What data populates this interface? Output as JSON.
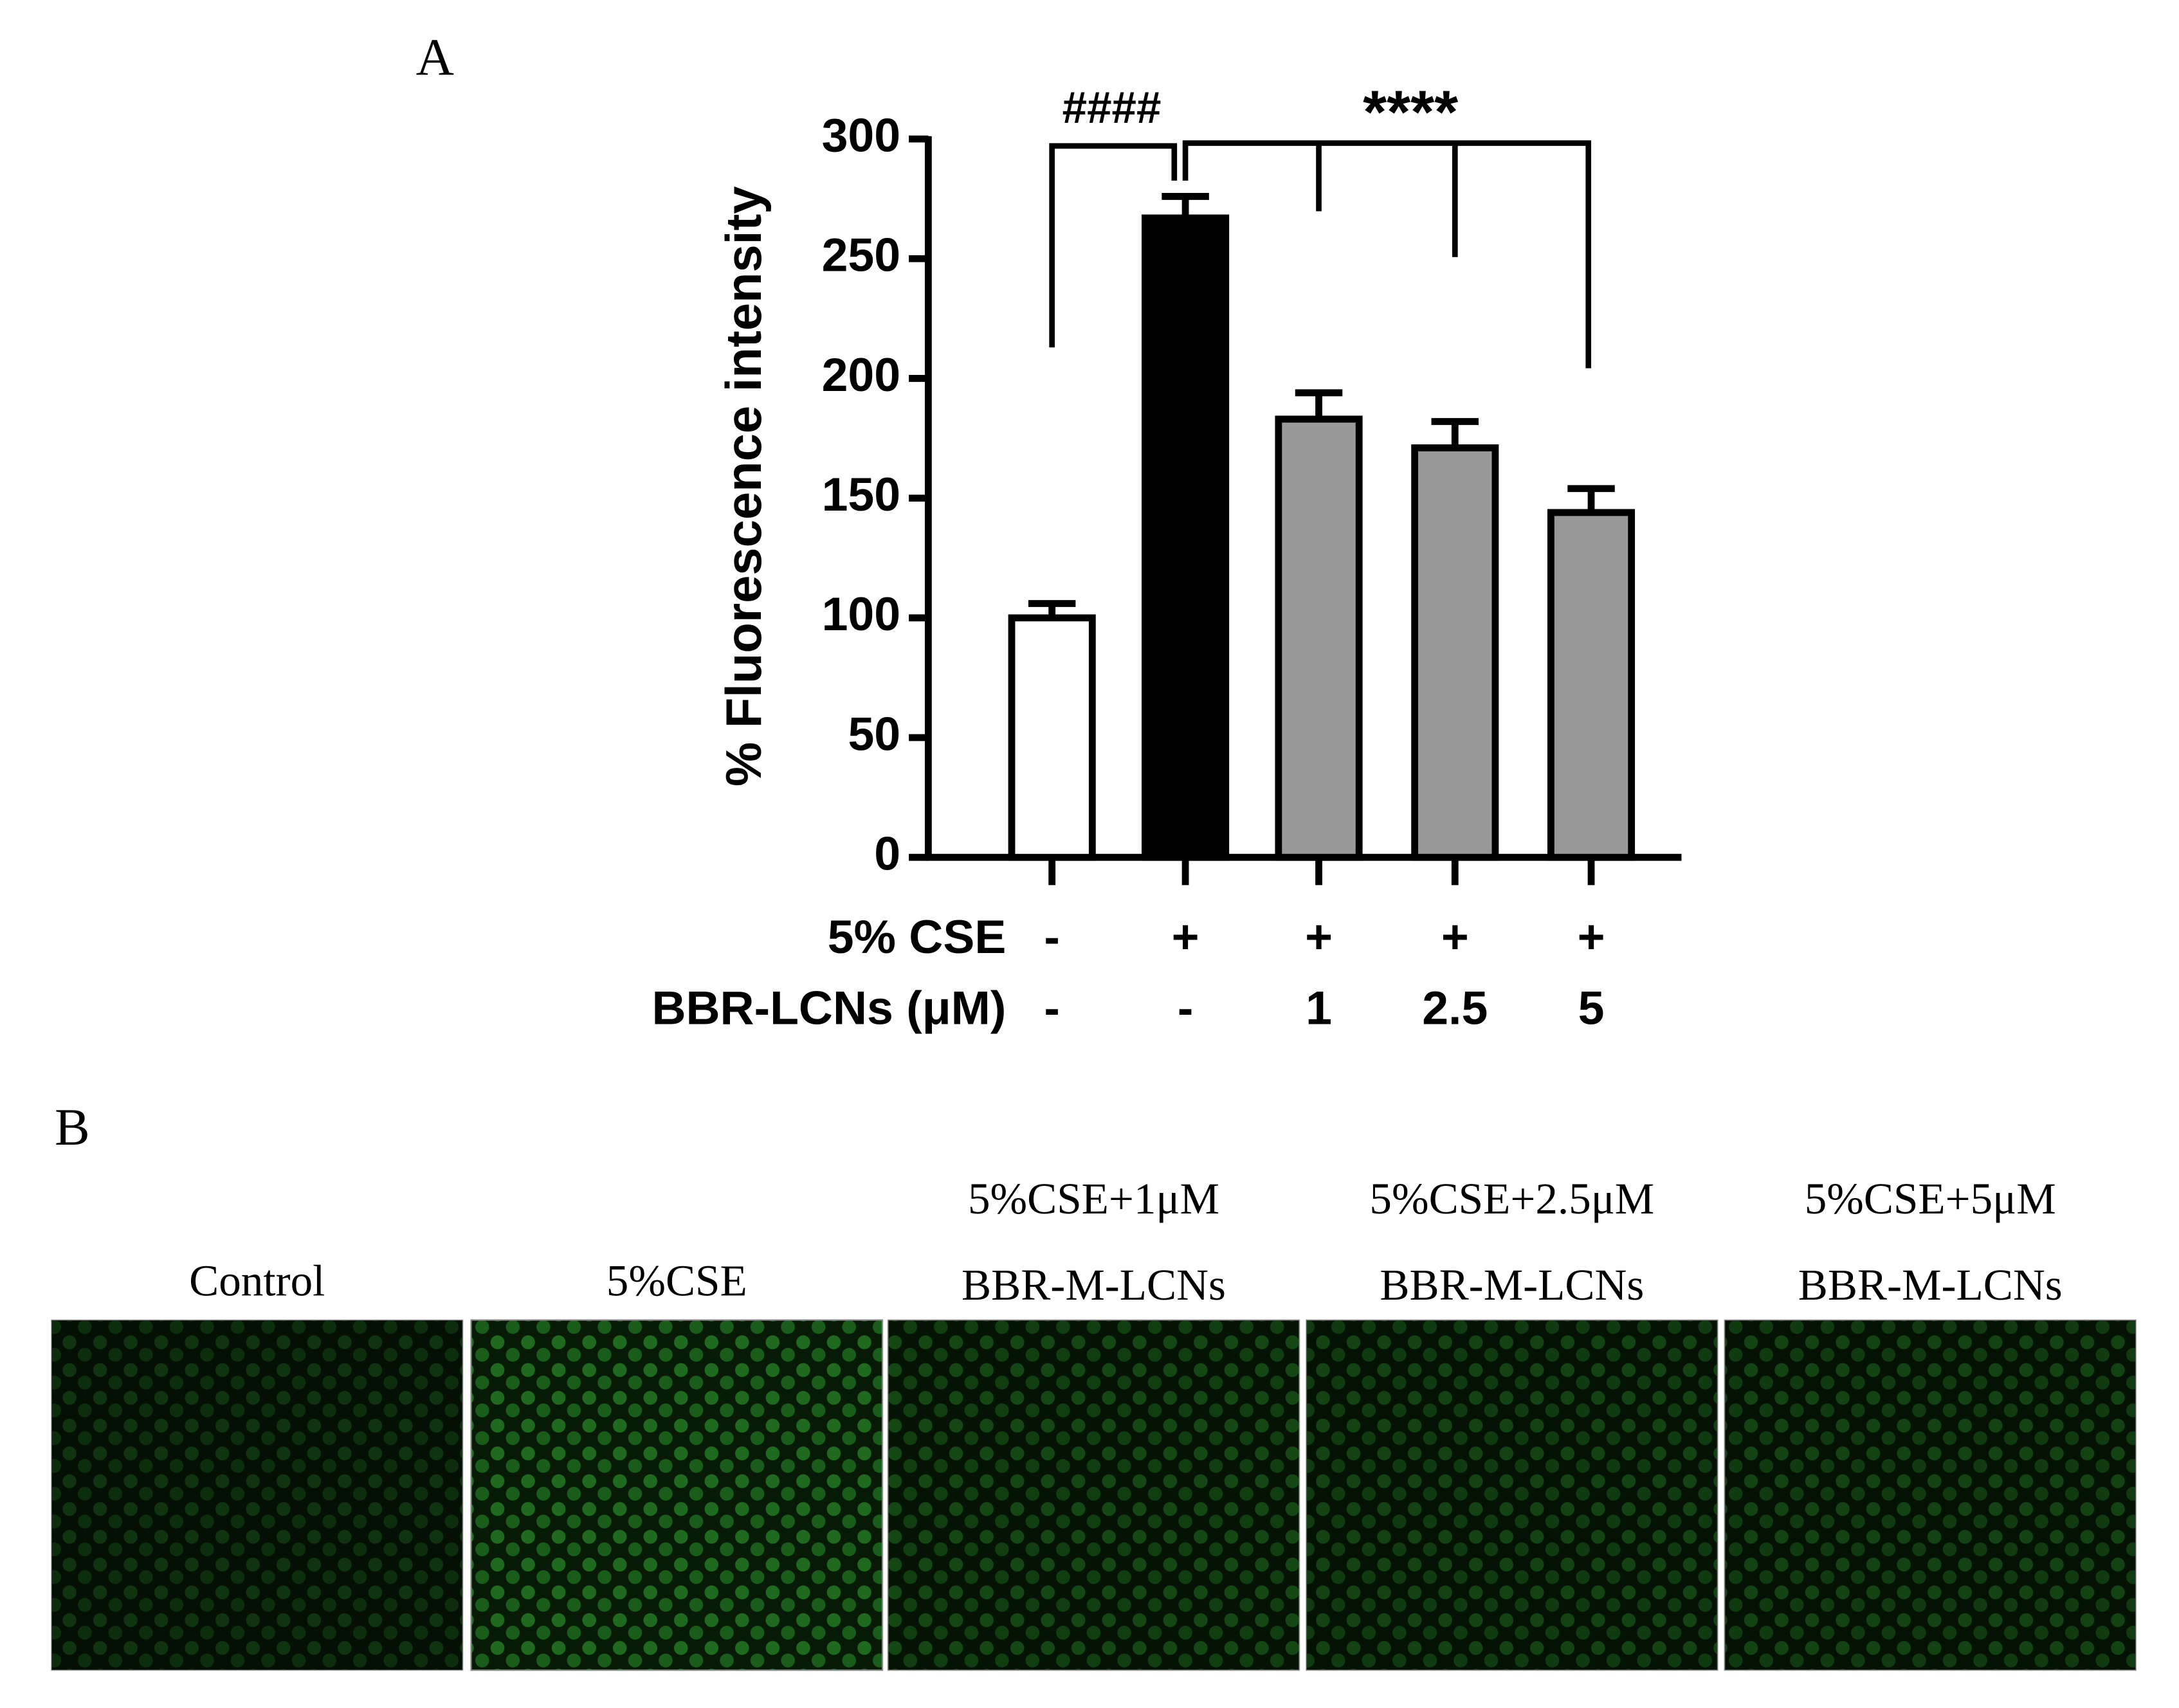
{
  "panel_a_label": "A",
  "chart_data": {
    "type": "bar",
    "y_label": "% Fluorescence intensity",
    "values": [
      100,
      267,
      183,
      171,
      144
    ],
    "errors": [
      6,
      9,
      11,
      11,
      10
    ],
    "colors": [
      "#ffffff",
      "#000000",
      "#999999",
      "#999999",
      "#999999"
    ],
    "ylim": [
      0,
      300
    ],
    "yticks": [
      0,
      50,
      100,
      150,
      200,
      250,
      300
    ],
    "condition_rows": [
      {
        "name": "5% CSE",
        "values": [
          "-",
          "+",
          "+",
          "+",
          "+"
        ]
      },
      {
        "name": "BBR-LCNs (μM)",
        "values": [
          "-",
          "-",
          "1",
          "2.5",
          "5"
        ]
      }
    ],
    "annotations": [
      {
        "text": "####"
      },
      {
        "text": "****"
      }
    ]
  },
  "panel_b": {
    "label": "B",
    "images": [
      {
        "caption": [
          "Control"
        ]
      },
      {
        "caption": [
          "5%CSE"
        ]
      },
      {
        "caption": [
          "5%CSE+1μM",
          "BBR-M-LCNs"
        ]
      },
      {
        "caption": [
          "5%CSE+2.5μM",
          "BBR-M-LCNs"
        ]
      },
      {
        "caption": [
          "5%CSE+5μM",
          "BBR-M-LCNs"
        ]
      }
    ]
  }
}
